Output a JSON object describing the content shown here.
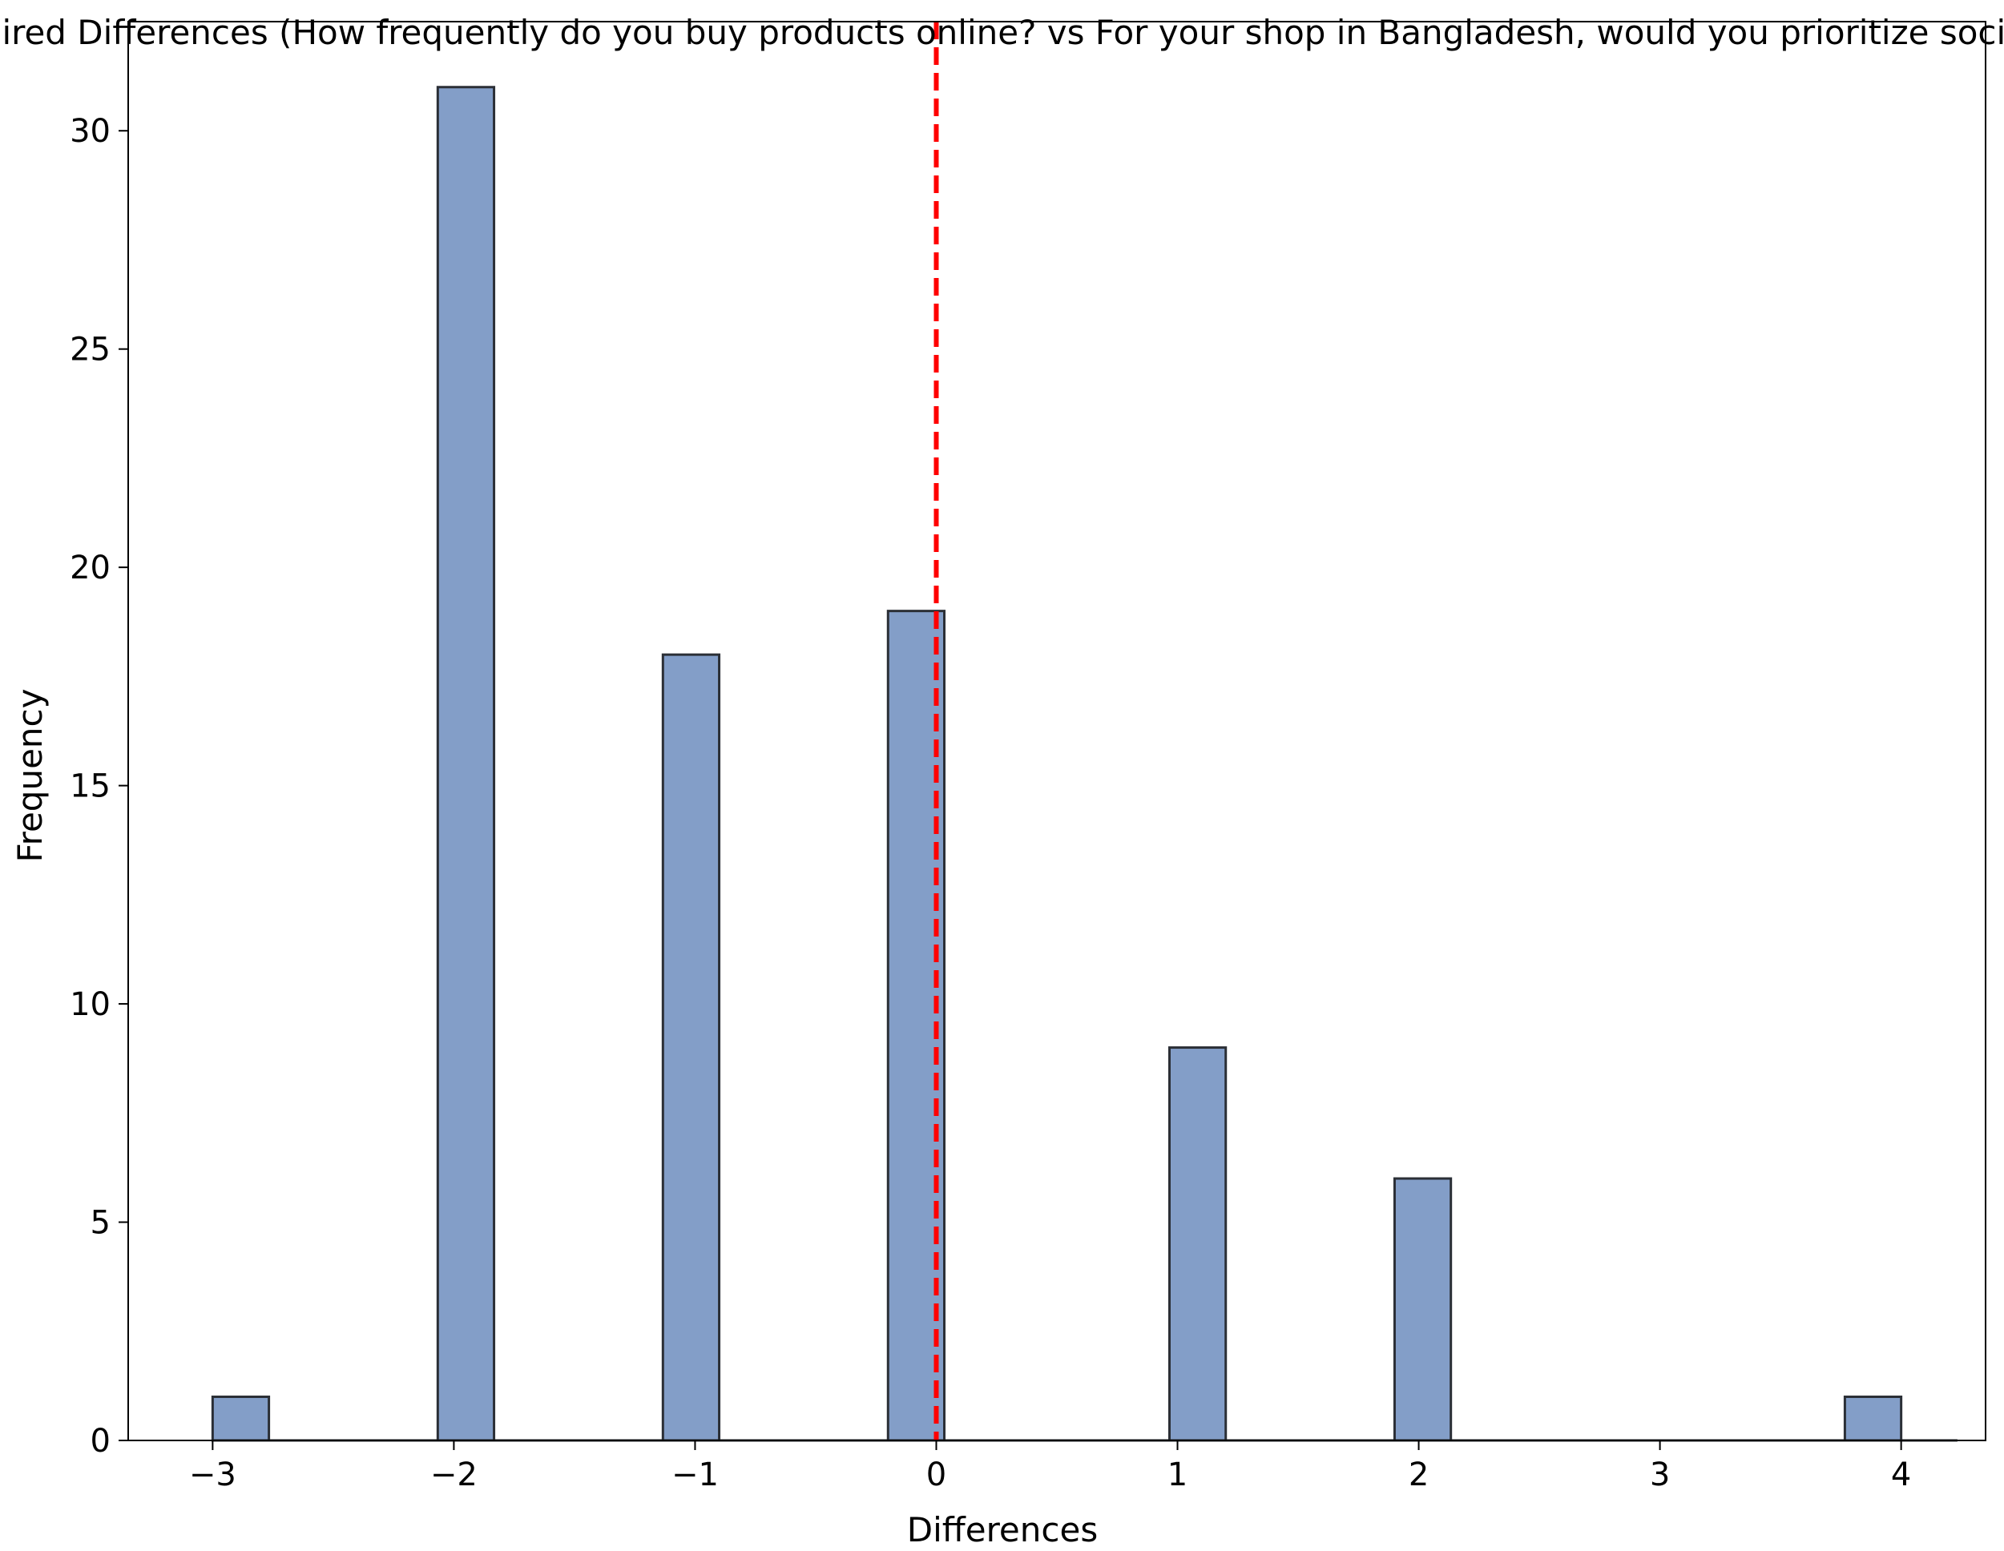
{
  "chart_data": {
    "type": "bar",
    "title": "Paired Differences (How frequently do you buy products online? vs For your shop in Bangladesh, would you prioritize social media",
    "xlabel": "Differences",
    "ylabel": "Frequency",
    "xlim": [
      -3.35,
      4.35
    ],
    "ylim": [
      0,
      32.5
    ],
    "x_ticks": [
      -3,
      -2,
      -1,
      0,
      1,
      2,
      3,
      4
    ],
    "x_tick_labels": [
      "−3",
      "−2",
      "−1",
      "0",
      "1",
      "2",
      "3",
      "4"
    ],
    "y_ticks": [
      0,
      5,
      10,
      15,
      20,
      25,
      30
    ],
    "y_tick_labels": [
      "0",
      "5",
      "10",
      "15",
      "20",
      "25",
      "30"
    ],
    "bin_width": 0.2333,
    "bins": [
      {
        "x0": -3.0,
        "count": 1
      },
      {
        "x0": -2.0667,
        "count": 31
      },
      {
        "x0": -1.1333,
        "count": 18
      },
      {
        "x0": -0.2,
        "count": 19
      },
      {
        "x0": 0.9667,
        "count": 9
      },
      {
        "x0": 1.9,
        "count": 6
      },
      {
        "x0": 3.7667,
        "count": 1
      }
    ],
    "reference_line": {
      "x": 0,
      "style": "dashed",
      "color": "#ff0000"
    },
    "grid": false,
    "colors": {
      "bar_fill": "#839ec8",
      "bar_edge": "#2b2f36",
      "axis": "#000000"
    }
  }
}
